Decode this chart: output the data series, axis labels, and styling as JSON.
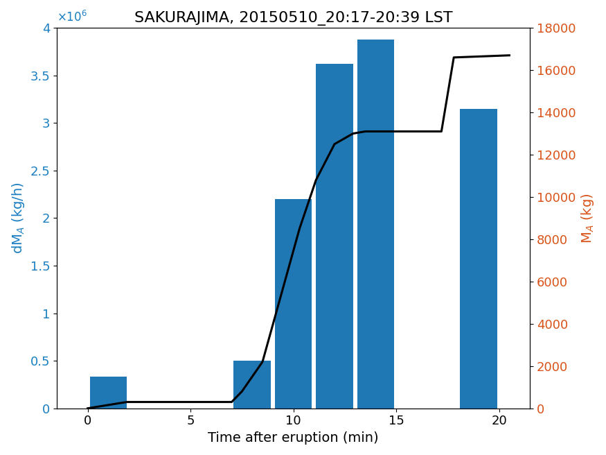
{
  "title": "SAKURAJIMA, 20150510_20:17-20:39 LST",
  "xlabel": "Time after eruption (min)",
  "ylabel_left": "dM$_A$ (kg/h)",
  "ylabel_right": "M$_A$ (kg)",
  "bar_centers": [
    1,
    8,
    10,
    12,
    14,
    19
  ],
  "bar_heights": [
    330000,
    500000,
    2200000,
    3620000,
    3880000,
    3150000
  ],
  "bar_width": 1.8,
  "bar_color": "#1f77b4",
  "xlim": [
    -1.5,
    21.5
  ],
  "ylim_left": [
    0,
    4000000
  ],
  "ylim_right": [
    0,
    18000
  ],
  "xticks": [
    0,
    5,
    10,
    15,
    20
  ],
  "yticks_left": [
    0,
    500000,
    1000000,
    1500000,
    2000000,
    2500000,
    3000000,
    3500000,
    4000000
  ],
  "ytick_labels_left": [
    "0",
    "0.5",
    "1",
    "1.5",
    "2",
    "2.5",
    "3",
    "3.5",
    "4"
  ],
  "yticks_right": [
    0,
    2000,
    4000,
    6000,
    8000,
    10000,
    12000,
    14000,
    16000,
    18000
  ],
  "line_x": [
    0,
    1.9,
    7.0,
    7.5,
    8.5,
    9.3,
    10.3,
    11.1,
    12.0,
    12.9,
    13.5,
    14.1,
    14.5,
    17.2,
    17.8,
    20.5
  ],
  "line_y": [
    0,
    300,
    300,
    800,
    2200,
    5000,
    8500,
    10800,
    12500,
    13000,
    13100,
    13100,
    13100,
    13100,
    16600,
    16700
  ],
  "line_color": "black",
  "line_width": 2.2,
  "title_fontsize": 16,
  "label_fontsize": 14,
  "tick_fontsize": 13,
  "left_label_color": "#1a7fc1",
  "right_label_color": "#d95319"
}
